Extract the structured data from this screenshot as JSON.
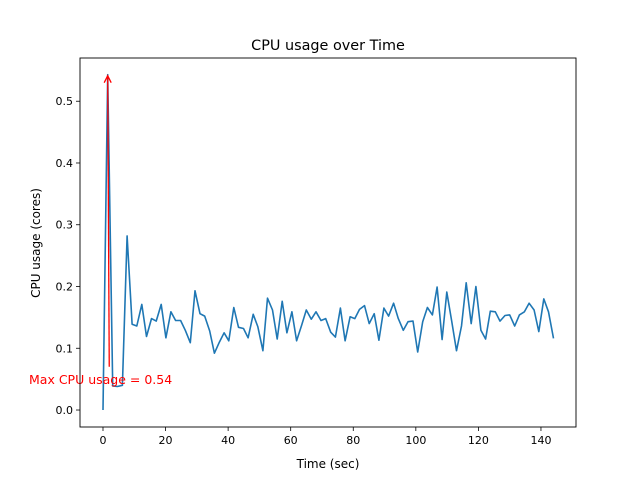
{
  "chart_data": {
    "type": "line",
    "title": "CPU usage over Time",
    "xlabel": "Time (sec)",
    "ylabel": "CPU usage (cores)",
    "xlim": [
      -7.35,
      151.2
    ],
    "ylim": [
      -0.0275,
      0.57
    ],
    "xticks": [
      0,
      20,
      40,
      60,
      80,
      100,
      120,
      140
    ],
    "yticks": [
      0.0,
      0.1,
      0.2,
      0.3,
      0.4,
      0.5
    ],
    "ytick_labels": [
      "0.0",
      "0.1",
      "0.2",
      "0.3",
      "0.4",
      "0.5"
    ],
    "grid": false,
    "series": [
      {
        "name": "CPU usage",
        "color": "#1f77b4",
        "x": [
          0,
          1.5,
          3.1,
          4.6,
          6.2,
          7.7,
          9.3,
          10.8,
          12.4,
          13.9,
          15.5,
          17.0,
          18.6,
          20.1,
          21.7,
          23.2,
          24.8,
          26.3,
          27.9,
          29.4,
          31.0,
          32.5,
          34.1,
          35.6,
          37.2,
          38.7,
          40.2,
          41.8,
          43.3,
          44.9,
          46.4,
          48.0,
          49.5,
          51.1,
          52.6,
          54.2,
          55.7,
          57.3,
          58.8,
          60.4,
          61.9,
          63.5,
          65.0,
          66.6,
          68.1,
          69.7,
          71.2,
          72.8,
          74.3,
          75.9,
          77.4,
          79.0,
          80.5,
          82.0,
          83.6,
          85.1,
          86.7,
          88.2,
          89.8,
          91.3,
          92.9,
          94.4,
          96.0,
          97.5,
          99.1,
          100.6,
          102.2,
          103.7,
          105.3,
          106.8,
          108.4,
          109.9,
          111.5,
          113.0,
          114.6,
          116.1,
          117.7,
          119.2,
          120.8,
          122.3,
          123.8,
          125.4,
          126.9,
          128.5,
          130.0,
          131.6,
          133.1,
          134.7,
          136.2,
          137.8,
          139.3,
          140.9,
          142.4,
          144.0
        ],
        "y": [
          0,
          0.543,
          0.039,
          0.038,
          0.04,
          0.282,
          0.139,
          0.136,
          0.171,
          0.119,
          0.148,
          0.144,
          0.171,
          0.117,
          0.159,
          0.145,
          0.145,
          0.129,
          0.109,
          0.193,
          0.156,
          0.152,
          0.128,
          0.092,
          0.11,
          0.125,
          0.112,
          0.166,
          0.134,
          0.132,
          0.117,
          0.155,
          0.135,
          0.096,
          0.181,
          0.162,
          0.115,
          0.176,
          0.125,
          0.159,
          0.112,
          0.137,
          0.162,
          0.147,
          0.159,
          0.145,
          0.148,
          0.126,
          0.118,
          0.165,
          0.112,
          0.151,
          0.148,
          0.163,
          0.169,
          0.14,
          0.156,
          0.113,
          0.165,
          0.152,
          0.173,
          0.148,
          0.129,
          0.143,
          0.144,
          0.094,
          0.143,
          0.166,
          0.154,
          0.199,
          0.114,
          0.191,
          0.143,
          0.096,
          0.136,
          0.206,
          0.14,
          0.2,
          0.129,
          0.115,
          0.16,
          0.159,
          0.144,
          0.153,
          0.154,
          0.136,
          0.154,
          0.159,
          0.173,
          0.162,
          0.127,
          0.18,
          0.159,
          0.116
        ]
      }
    ],
    "annotation": {
      "text": "Max CPU usage = 0.54",
      "color": "#ff0000",
      "xy": [
        1.5,
        0.543
      ],
      "xytext": [
        2,
        0.07
      ]
    }
  }
}
